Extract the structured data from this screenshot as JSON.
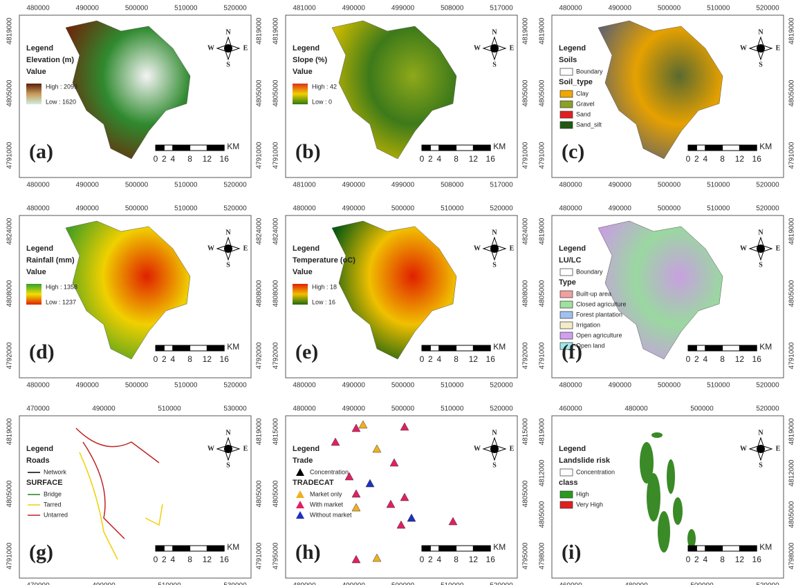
{
  "compass": {
    "n": "N",
    "s": "S",
    "e": "E",
    "w": "W"
  },
  "scale_bar": {
    "ticks": [
      "0",
      "2",
      "4",
      "8",
      "12",
      "16"
    ],
    "unit": "KM"
  },
  "panels": [
    {
      "label": "(a)",
      "xticks": [
        "480000",
        "490000",
        "500000",
        "510000",
        "520000"
      ],
      "yticks": [
        "4819000",
        "4805000",
        "4791000"
      ],
      "map_fill": [
        "#6b2a0c",
        "#2f8a2f",
        "#f4f4f4"
      ],
      "legend": [
        {
          "text": "Legend"
        },
        {
          "text": "Elevation (m)"
        },
        {
          "text": "Value"
        },
        {
          "ramp": [
            "#5a1f0a",
            "#c89a5a",
            "#cfeedd"
          ],
          "high": "High : 2099",
          "low": "Low : 1620"
        }
      ]
    },
    {
      "label": "(b)",
      "xticks": [
        "481000",
        "490000",
        "499000",
        "508000",
        "517000"
      ],
      "yticks": [
        "4819000",
        "4805000",
        "4791000"
      ],
      "map_fill": [
        "#c9b800",
        "#3d7a1a",
        "#8fa81a"
      ],
      "legend": [
        {
          "text": "Legend"
        },
        {
          "text": "Slope (%)"
        },
        {
          "text": "Value"
        },
        {
          "ramp": [
            "#e0301a",
            "#f0d000",
            "#2a7a10"
          ],
          "high": "High : 42",
          "low": "Low : 0"
        }
      ]
    },
    {
      "label": "(c)",
      "xticks": [
        "480000",
        "490000",
        "500000",
        "510000",
        "520000"
      ],
      "yticks": [
        "4819000",
        "4805000",
        "4791000"
      ],
      "map_fill": [
        "#666666",
        "#e6a100",
        "#5a6a30"
      ],
      "legend": [
        {
          "text": "Legend"
        },
        {
          "text": "Soils"
        },
        {
          "text": "Boundary",
          "color": "#ffffff"
        },
        {
          "text": "Soil_type"
        },
        {
          "text": "Clay",
          "color": "#f0a800"
        },
        {
          "text": "Gravel",
          "color": "#8ca028"
        },
        {
          "text": "Sand",
          "color": "#e02020"
        },
        {
          "text": "Sand_silt",
          "color": "#1f5a10"
        }
      ]
    },
    {
      "label": "(d)",
      "xticks": [
        "480000",
        "490000",
        "500000",
        "510000",
        "520000"
      ],
      "yticks": [
        "4824000",
        "4808000",
        "4792000"
      ],
      "map_fill": [
        "#4aa020",
        "#f0d000",
        "#e02000"
      ],
      "legend": [
        {
          "text": "Legend"
        },
        {
          "text": "Rainfall (mm)"
        },
        {
          "text": "Value"
        },
        {
          "ramp": [
            "#30a030",
            "#f0e000",
            "#e02000"
          ],
          "high": "High : 1358",
          "low": "Low : 1237"
        }
      ]
    },
    {
      "label": "(e)",
      "xticks": [
        "480000",
        "490000",
        "500000",
        "510000",
        "520000"
      ],
      "yticks": [
        "4824000",
        "4808000",
        "4792000"
      ],
      "map_fill": [
        "#0a5a10",
        "#f0c000",
        "#e02000"
      ],
      "legend": [
        {
          "text": "Legend"
        },
        {
          "text": "Temperature (oC)"
        },
        {
          "text": "Value"
        },
        {
          "ramp": [
            "#e02000",
            "#f0c000",
            "#1a6a10"
          ],
          "high": "High : 18",
          "low": "Low : 16"
        }
      ]
    },
    {
      "label": "(f)",
      "xticks": [
        "480000",
        "490000",
        "500000",
        "510000",
        "520000"
      ],
      "yticks": [
        "4819000",
        "4805000",
        "4791000"
      ],
      "map_fill": [
        "#c8a0e0",
        "#9ad8a0",
        "#c8a0e0"
      ],
      "legend": [
        {
          "text": "Legend"
        },
        {
          "text": "LU/LC"
        },
        {
          "text": "Boundary",
          "color": "#ffffff"
        },
        {
          "text": "Type"
        },
        {
          "text": "Built-up area",
          "color": "#f0a0a0"
        },
        {
          "text": "Closed agriculture",
          "color": "#a0e0a0"
        },
        {
          "text": "Forest plantation",
          "color": "#a0c0f0"
        },
        {
          "text": "Irrigation",
          "color": "#f4ecc8"
        },
        {
          "text": "Open agriculture",
          "color": "#d0a0f0"
        },
        {
          "text": "Open land",
          "color": "#a0e8e8"
        }
      ]
    },
    {
      "label": "(g)",
      "xticks": [
        "470000",
        "490000",
        "510000",
        "530000"
      ],
      "yticks": [
        "4819000",
        "4805000",
        "4791000"
      ],
      "legend": [
        {
          "text": "Legend"
        },
        {
          "text": "Roads"
        },
        {
          "text": "Network",
          "line": "#000000"
        },
        {
          "text": "SURFACE"
        },
        {
          "text": "Bridge",
          "line": "#208020"
        },
        {
          "text": "Tarred",
          "line": "#f0d000"
        },
        {
          "text": "Untarred",
          "line": "#c02020"
        }
      ]
    },
    {
      "label": "(h)",
      "xticks": [
        "480000",
        "490000",
        "500000",
        "510000",
        "520000"
      ],
      "yticks": [
        "4815000",
        "4805000",
        "4795000"
      ],
      "legend": [
        {
          "text": "Legend"
        },
        {
          "text": "Trade"
        },
        {
          "text": "Concentration",
          "tri": "#000000"
        },
        {
          "text": "TRADECAT"
        },
        {
          "text": "Market only",
          "tri": "#f0b020"
        },
        {
          "text": "With market",
          "tri": "#e02060"
        },
        {
          "text": "Without market",
          "tri": "#2030c0"
        }
      ]
    },
    {
      "label": "(i)",
      "xticks": [
        "460000",
        "480000",
        "500000",
        "520000"
      ],
      "yticks": [
        "4819000",
        "4812000",
        "4805000",
        "4798000"
      ],
      "legend": [
        {
          "text": "Legend"
        },
        {
          "text": "Landslide risk"
        },
        {
          "text": "Concentration",
          "color": "#ffffff"
        },
        {
          "text": "class"
        },
        {
          "text": "High",
          "color": "#2a9a20"
        },
        {
          "text": "Very High",
          "color": "#e02020"
        }
      ]
    }
  ]
}
